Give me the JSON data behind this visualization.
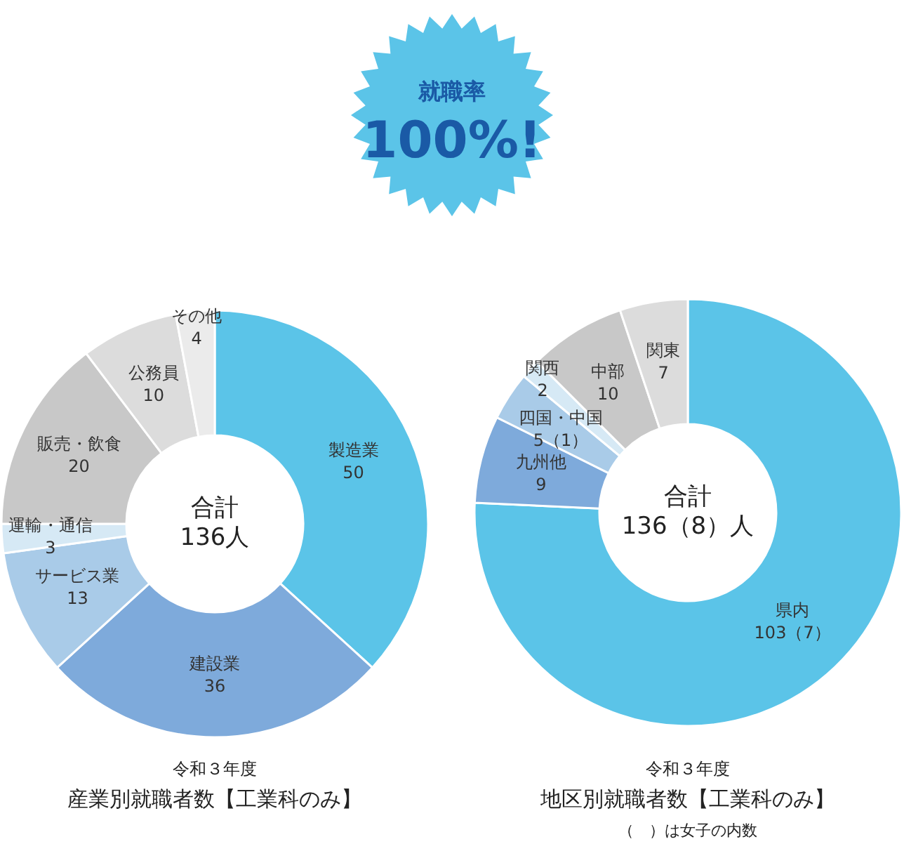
{
  "chart_data": [
    {
      "type": "other",
      "title": "就職率",
      "annotations": [
        "100%!"
      ]
    },
    {
      "type": "donut",
      "subtitle": "令和３年度",
      "title": "産業別就職者数【工業科のみ】",
      "annotations": [
        "合計\n136人"
      ],
      "data_labels": true,
      "categories": [
        "製造業",
        "建設業",
        "サービス業",
        "運輸・通信",
        "販売・飲食",
        "公務員",
        "その他"
      ],
      "values": [
        50,
        36,
        13,
        3,
        20,
        10,
        4
      ],
      "colors": [
        "#5bc4e8",
        "#7eaadb",
        "#a9cbe8",
        "#d6e9f5",
        "#c8c8c8",
        "#dcdcdc",
        "#ebebeb"
      ]
    },
    {
      "type": "donut",
      "subtitle": "令和３年度",
      "title": "地区別就職者数【工業科のみ】",
      "annotations": [
        "合計\n136（8）人",
        "（　）は女子の内数"
      ],
      "categories": [
        "県内",
        "九州他",
        "四国・中国",
        "関西",
        "中部",
        "関東"
      ],
      "values": [
        103,
        9,
        5,
        2,
        10,
        7
      ],
      "value_labels": [
        "103（7）",
        "9",
        "5（1）",
        "2",
        "10",
        "7"
      ],
      "colors": [
        "#5bc4e8",
        "#7eaadb",
        "#a9cbe8",
        "#d6e9f5",
        "#c8c8c8",
        "#dcdcdc"
      ]
    }
  ]
}
